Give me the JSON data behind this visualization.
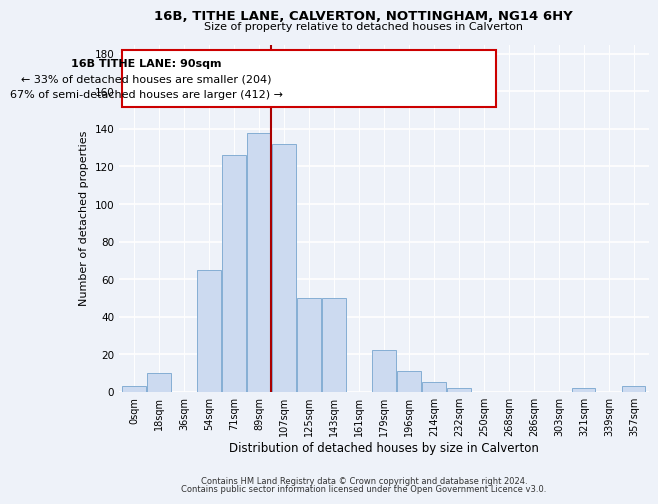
{
  "title1": "16B, TITHE LANE, CALVERTON, NOTTINGHAM, NG14 6HY",
  "title2": "Size of property relative to detached houses in Calverton",
  "xlabel": "Distribution of detached houses by size in Calverton",
  "ylabel": "Number of detached properties",
  "bar_labels": [
    "0sqm",
    "18sqm",
    "36sqm",
    "54sqm",
    "71sqm",
    "89sqm",
    "107sqm",
    "125sqm",
    "143sqm",
    "161sqm",
    "179sqm",
    "196sqm",
    "214sqm",
    "232sqm",
    "250sqm",
    "268sqm",
    "286sqm",
    "303sqm",
    "321sqm",
    "339sqm",
    "357sqm"
  ],
  "bar_heights": [
    3,
    10,
    0,
    65,
    126,
    138,
    132,
    50,
    50,
    0,
    22,
    11,
    5,
    2,
    0,
    0,
    0,
    0,
    2,
    0,
    3
  ],
  "bar_color": "#ccdaf0",
  "bar_edge_color": "#85aed4",
  "vline_x_index": 5,
  "vline_color": "#aa0000",
  "annotation_title": "16B TITHE LANE: 90sqm",
  "annotation_line1": "← 33% of detached houses are smaller (204)",
  "annotation_line2": "67% of semi-detached houses are larger (412) →",
  "annotation_box_color": "#ffffff",
  "annotation_box_edge": "#cc0000",
  "ylim": [
    0,
    185
  ],
  "yticks": [
    0,
    20,
    40,
    60,
    80,
    100,
    120,
    140,
    160,
    180
  ],
  "footer1": "Contains HM Land Registry data © Crown copyright and database right 2024.",
  "footer2": "Contains public sector information licensed under the Open Government Licence v3.0.",
  "bg_color": "#eef2f9",
  "grid_color": "#ffffff",
  "tick_label_fontsize": 7.0,
  "ylabel_fontsize": 8.0,
  "xlabel_fontsize": 8.5
}
